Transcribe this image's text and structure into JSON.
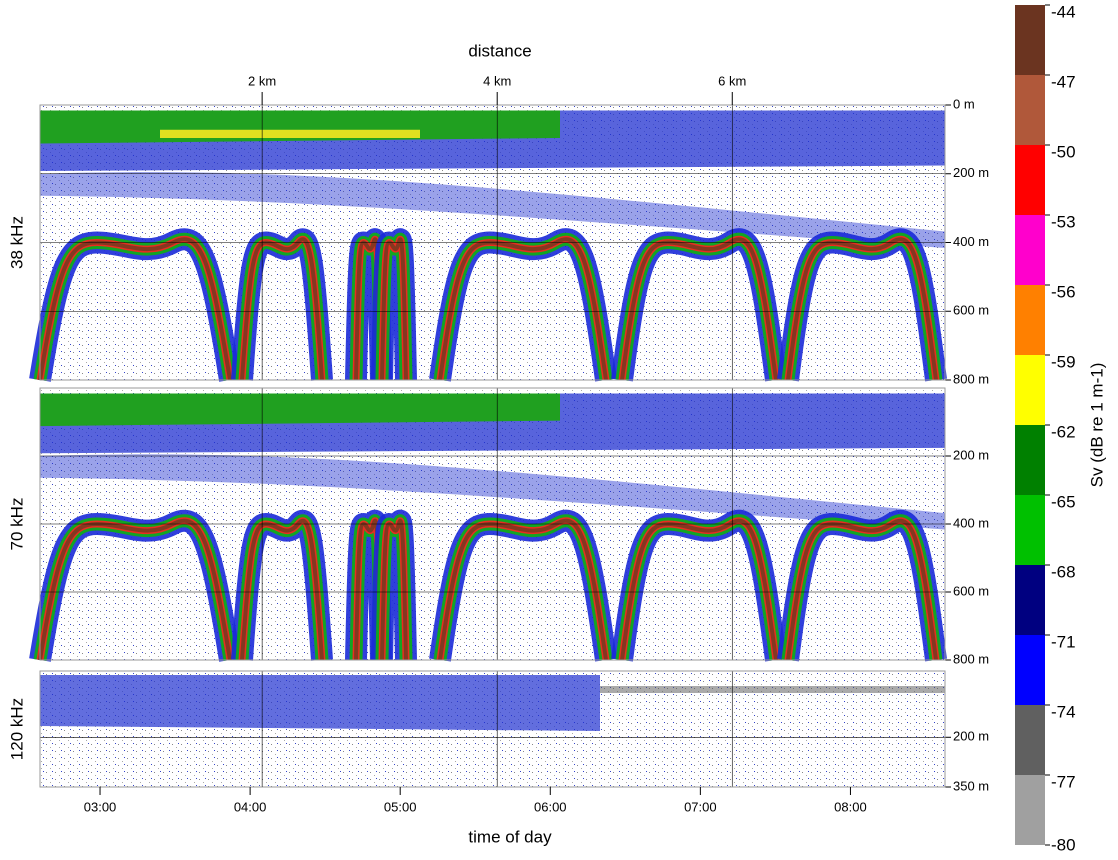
{
  "chart_data": {
    "type": "echogram",
    "x_title": "time of day",
    "x2_title": "distance",
    "xlim": [
      2.6,
      8.63
    ],
    "xticks": [
      {
        "value": 3,
        "label": "03:00"
      },
      {
        "value": 4,
        "label": "04:00"
      },
      {
        "value": 5,
        "label": "05:00"
      },
      {
        "value": 6,
        "label": "06:00"
      },
      {
        "value": 7,
        "label": "07:00"
      },
      {
        "value": 8,
        "label": "08:00"
      }
    ],
    "x2lim": [
      0.11,
      7.81
    ],
    "x2ticks": [
      {
        "value": 2,
        "label": "2 km"
      },
      {
        "value": 4,
        "label": "4 km"
      },
      {
        "value": 6,
        "label": "6 km"
      }
    ],
    "panels": [
      {
        "label": "38 kHz",
        "ylim": [
          0,
          800
        ],
        "yticks": [
          {
            "value": 0,
            "label": "0 m"
          },
          {
            "value": 200,
            "label": "200 m"
          },
          {
            "value": 400,
            "label": "400 m"
          },
          {
            "value": 600,
            "label": "600 m"
          },
          {
            "value": 800,
            "label": "800 m"
          }
        ]
      },
      {
        "label": "70 kHz",
        "ylim": [
          0,
          800
        ],
        "yticks": [
          {
            "value": 200,
            "label": "200 m"
          },
          {
            "value": 400,
            "label": "400 m"
          },
          {
            "value": 600,
            "label": "600 m"
          },
          {
            "value": 800,
            "label": "800 m"
          }
        ]
      },
      {
        "label": "120 kHz",
        "ylim": [
          0,
          350
        ],
        "yticks": [
          {
            "value": 200,
            "label": "200 m"
          },
          {
            "value": 350,
            "label": "350 m"
          }
        ]
      }
    ],
    "colorbar": {
      "title": "Sv (dB re 1 m-1)",
      "ticks": [
        -44,
        -47,
        -50,
        -53,
        -56,
        -59,
        -62,
        -65,
        -68,
        -71,
        -74,
        -77,
        -80
      ],
      "colors": [
        "#6b3420",
        "#b0583a",
        "#ff0000",
        "#ff00cc",
        "#ff8000",
        "#ffff00",
        "#008000",
        "#00c000",
        "#000080",
        "#0000ff",
        "#606060",
        "#a0a0a0"
      ]
    }
  }
}
